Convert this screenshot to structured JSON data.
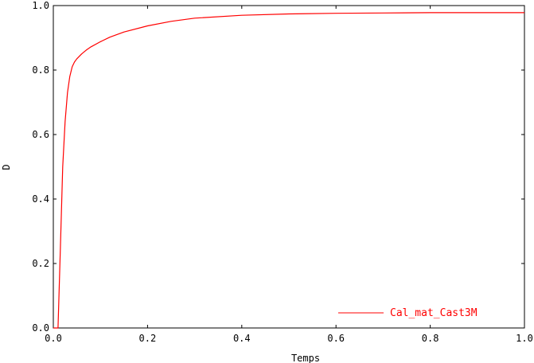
{
  "chart_data": {
    "type": "line",
    "title": "",
    "xlabel": "Temps",
    "ylabel": "D",
    "xlim": [
      0.0,
      1.0
    ],
    "ylim": [
      0.0,
      1.0
    ],
    "grid": false,
    "legend_position": "bottom-right",
    "x_ticks": [
      "0.0",
      "0.2",
      "0.4",
      "0.6",
      "0.8",
      "1.0"
    ],
    "y_ticks": [
      "0.0",
      "0.2",
      "0.4",
      "0.6",
      "0.8",
      "1.0"
    ],
    "series": [
      {
        "name": "Cal_mat_Cast3M",
        "color": "#ff0000",
        "x": [
          0.0,
          0.01,
          0.015,
          0.02,
          0.025,
          0.03,
          0.035,
          0.04,
          0.045,
          0.05,
          0.06,
          0.07,
          0.08,
          0.1,
          0.12,
          0.15,
          0.2,
          0.25,
          0.3,
          0.4,
          0.5,
          0.6,
          0.7,
          0.8,
          1.0
        ],
        "y": [
          0.0,
          0.0,
          0.25,
          0.5,
          0.64,
          0.73,
          0.78,
          0.81,
          0.825,
          0.835,
          0.85,
          0.862,
          0.872,
          0.888,
          0.902,
          0.918,
          0.937,
          0.951,
          0.961,
          0.97,
          0.974,
          0.976,
          0.977,
          0.978,
          0.978
        ]
      }
    ]
  }
}
